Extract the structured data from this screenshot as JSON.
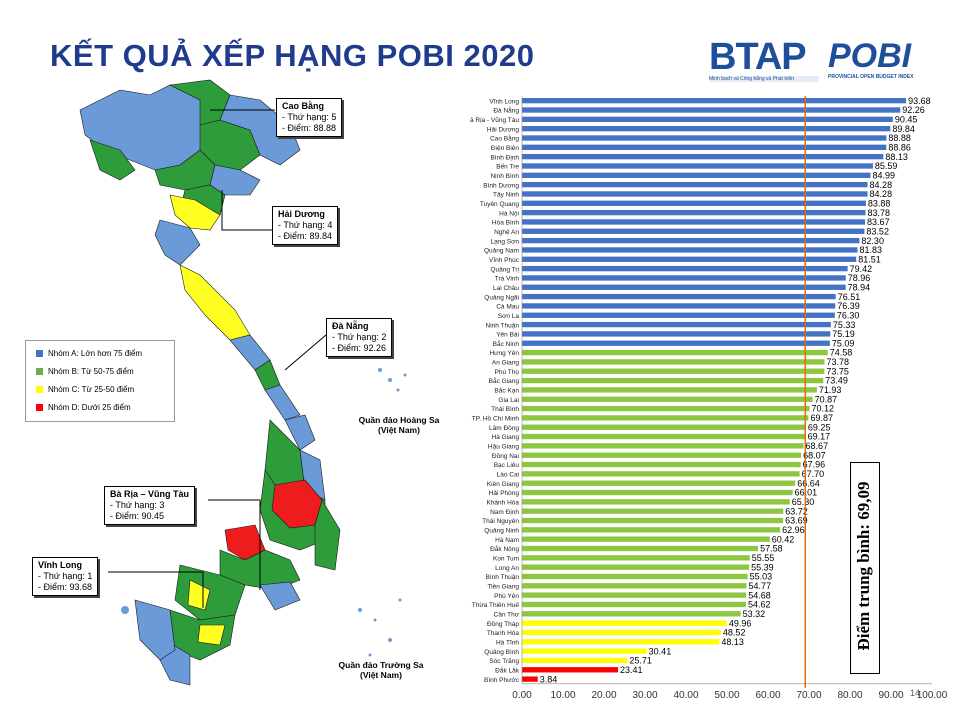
{
  "title": "KẾT QUẢ XẾP HẠNG POBI 2020",
  "logos": {
    "btap": {
      "text": "BTAP",
      "subtitle": "Minh bạch và Công bằng và Phát triển"
    },
    "pobi": {
      "text": "POBI",
      "subtitle": "PROVINCIAL OPEN BUDGET INDEX"
    }
  },
  "colors": {
    "group_a": "#4472c4",
    "group_b": "#8dc63f",
    "group_c": "#ffff00",
    "group_d": "#ff0000",
    "map_green": "#2e9c3a",
    "map_blue": "#6a9bd8",
    "map_yellow": "#ffff22",
    "map_red": "#ee1c1c",
    "avg_line": "#e46c0a"
  },
  "legend": [
    {
      "label": "Nhóm A: Lớn hơn 75 điểm",
      "color": "#4472c4"
    },
    {
      "label": "Nhóm B: Từ 50-75 điểm",
      "color": "#70ad47"
    },
    {
      "label": "Nhóm C: Từ 25-50 điểm",
      "color": "#ffff00"
    },
    {
      "label": "Nhóm D: Dưới 25 điểm",
      "color": "#ff0000"
    }
  ],
  "callouts": {
    "cao_bang": {
      "name": "Cao Bằng",
      "rank": "- Thứ hạng: 5",
      "score": "- Điểm: 88.88"
    },
    "hai_duong": {
      "name": "Hải Dương",
      "rank": "- Thứ hạng: 4",
      "score": "- Điểm: 89.84"
    },
    "da_nang": {
      "name": "Đà Nẵng",
      "rank": "- Thứ hạng: 2",
      "score": "- Điểm: 92.26"
    },
    "ba_ria": {
      "name": "Bà Rịa – Vũng Tàu",
      "rank": "- Thứ hạng: 3",
      "score": "- Điểm: 90.45"
    },
    "vinh_long": {
      "name": "Vĩnh Long",
      "rank": "- Thứ hạng: 1",
      "score": "- Điểm: 93.68"
    }
  },
  "islands": {
    "hoang_sa": "Quần đảo Hoàng Sa\n(Việt Nam)",
    "truong_sa": "Quần đảo Trường Sa\n(Việt Nam)"
  },
  "average_label": "Điểm trung bình: 69,09",
  "page_number": "14",
  "chart_data": {
    "type": "bar",
    "orientation": "horizontal",
    "categories": [
      "Vĩnh Long",
      "Đà Nẵng",
      "Bà Rịa - Vũng Tàu",
      "Hải Dương",
      "Cao Bằng",
      "Điện Biên",
      "Bình Định",
      "Bến Tre",
      "Ninh Bình",
      "Bình Dương",
      "Tây Ninh",
      "Tuyên Quang",
      "Hà Nội",
      "Hòa Bình",
      "Nghệ An",
      "Lạng Sơn",
      "Quảng Nam",
      "Vĩnh Phúc",
      "Quảng Trị",
      "Trà Vinh",
      "Lai Châu",
      "Quảng Ngãi",
      "Cà Mau",
      "Sơn La",
      "Ninh Thuận",
      "Yên Bái",
      "Bắc Ninh",
      "Hưng Yên",
      "An Giang",
      "Phú Thọ",
      "Bắc Giang",
      "Bắc Kạn",
      "Gia Lai",
      "Thái Bình",
      "TP. Hồ Chí Minh",
      "Lâm Đồng",
      "Hà Giang",
      "Hậu Giang",
      "Đồng Nai",
      "Bạc Liêu",
      "Lào Cai",
      "Kiên Giang",
      "Hải Phòng",
      "Khánh Hòa",
      "Nam Định",
      "Thái Nguyên",
      "Quảng Ninh",
      "Hà Nam",
      "Đắk Nông",
      "Kon Tum",
      "Long An",
      "Bình Thuận",
      "Tiền Giang",
      "Phú Yên",
      "Thừa Thiên Huế",
      "Cần Thơ",
      "Đồng Tháp",
      "Thanh Hóa",
      "Hà Tĩnh",
      "Quảng Bình",
      "Sóc Trăng",
      "Đắk Lắk",
      "Bình Phước"
    ],
    "values": [
      93.68,
      92.26,
      90.45,
      89.84,
      88.88,
      88.86,
      88.13,
      85.59,
      84.99,
      84.28,
      84.28,
      83.88,
      83.78,
      83.67,
      83.52,
      82.3,
      81.83,
      81.51,
      79.42,
      78.96,
      78.94,
      76.51,
      76.39,
      76.3,
      75.33,
      75.19,
      75.09,
      74.58,
      73.78,
      73.75,
      73.49,
      71.93,
      70.87,
      70.12,
      69.87,
      69.25,
      69.17,
      68.67,
      68.07,
      67.96,
      67.7,
      66.64,
      66.01,
      65.3,
      63.72,
      63.69,
      62.96,
      60.42,
      57.58,
      55.55,
      55.39,
      55.03,
      54.77,
      54.68,
      54.62,
      53.32,
      49.96,
      48.52,
      48.13,
      30.41,
      25.71,
      23.41,
      3.84
    ],
    "value_labels": [
      "93.68",
      "92.26",
      "90.45",
      "89.84",
      "88.88",
      "88.86",
      "88.13",
      "85.59",
      "84.99",
      "84.28",
      "84.28",
      "83.88",
      "83.78",
      "83.67",
      "83.52",
      "82.30",
      "81.83",
      "81.51",
      "79.42",
      "78.96",
      "78.94",
      "76.51",
      "76.39",
      "76.30",
      "75.33",
      "75.19",
      "75.09",
      "74.58",
      "73.78",
      "73.75",
      "73.49",
      "71.93",
      "70.87",
      "70.12",
      "69.87",
      "69.25",
      "69.17",
      "68.67",
      "68.07",
      "67.96",
      "67.70",
      "66.64",
      "66.01",
      "65.30",
      "63.72",
      "63.69",
      "62.96",
      "60.42",
      "57.58",
      "55.55",
      "55.39",
      "55.03",
      "54.77",
      "54.68",
      "54.62",
      "53.32",
      "49.96",
      "48.52",
      "48.13",
      "30.41",
      "25.71",
      "23.41",
      "3.84"
    ],
    "xlim": [
      0,
      100
    ],
    "xticks": [
      "0.00",
      "10.00",
      "20.00",
      "30.00",
      "40.00",
      "50.00",
      "60.00",
      "70.00",
      "80.00",
      "90.00",
      "100.00"
    ],
    "average": 69.09,
    "group_colors": {
      "A": "#4472c4",
      "B": "#8dc63f",
      "C": "#ffff00",
      "D": "#ff0000"
    },
    "thresholds": {
      "A": 75,
      "B": 50,
      "C": 25
    }
  }
}
